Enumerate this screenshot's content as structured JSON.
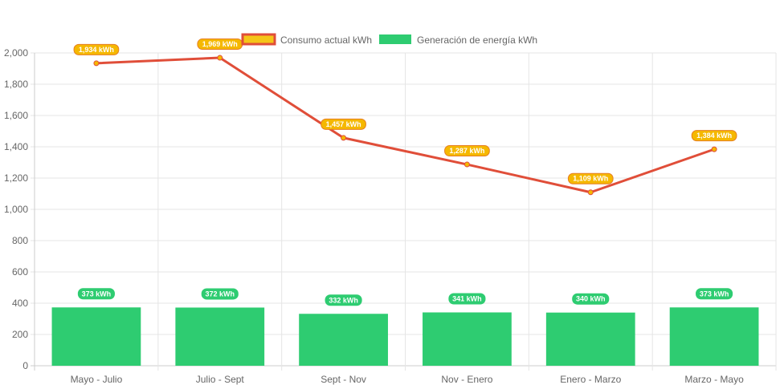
{
  "chart_data": {
    "type": "bar",
    "categories": [
      "Mayo - Julio",
      "Julio - Sept",
      "Sept - Nov",
      "Nov - Enero",
      "Enero - Marzo",
      "Marzo - Mayo"
    ],
    "series": [
      {
        "name": "Consumo actual kWh",
        "type": "line",
        "values": [
          1934,
          1969,
          1457,
          1287,
          1109,
          1384
        ],
        "labels": [
          "1,934 kWh",
          "1,969 kWh",
          "1,457 kWh",
          "1,287 kWh",
          "1,109 kWh",
          "1,384 kWh"
        ],
        "color": "#e04e39",
        "label_fill": "#f5b800",
        "label_border": "#e67e22"
      },
      {
        "name": "Generación de energía kWh",
        "type": "bar",
        "values": [
          373,
          372,
          332,
          341,
          340,
          373
        ],
        "labels": [
          "373 kWh",
          "372 kWh",
          "332 kWh",
          "341 kWh",
          "340 kWh",
          "373 kWh"
        ],
        "color": "#2ecc71"
      }
    ],
    "y_ticks": [
      "0",
      "200",
      "400",
      "600",
      "800",
      "1,000",
      "1,200",
      "1,400",
      "1,600",
      "1,800",
      "2,000"
    ],
    "ylim": [
      0,
      2000
    ],
    "ystep": 200,
    "grid": true,
    "legend_position": "top"
  }
}
